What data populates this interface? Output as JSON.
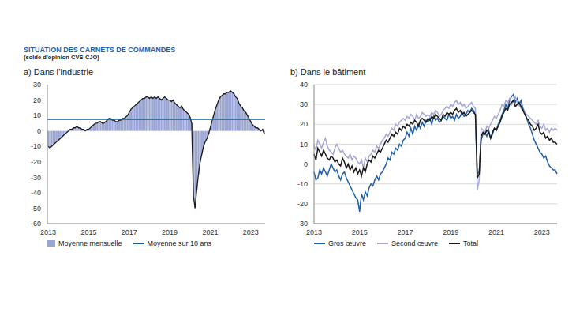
{
  "title": "SITUATION DES CARNETS DE COMMANDES",
  "subtitle": "(solde d’opinion CVS-CJO)",
  "chart_data": [
    {
      "type": "bar",
      "title": "a) Dans l’industrie",
      "categories": [
        "2013",
        null,
        null,
        null,
        null,
        null,
        null,
        null,
        null,
        null,
        null,
        null,
        null,
        null,
        null,
        null,
        null,
        null,
        null,
        null,
        null,
        null,
        null,
        null,
        "2015",
        null,
        null,
        null,
        null,
        null,
        null,
        null,
        null,
        null,
        null,
        null,
        null,
        null,
        null,
        null,
        null,
        null,
        null,
        null,
        null,
        null,
        null,
        null,
        "2017",
        null,
        null,
        null,
        null,
        null,
        null,
        null,
        null,
        null,
        null,
        null,
        null,
        null,
        null,
        null,
        null,
        null,
        null,
        null,
        null,
        null,
        null,
        null,
        "2019",
        null,
        null,
        null,
        null,
        null,
        null,
        null,
        null,
        null,
        null,
        null,
        null,
        null,
        null,
        null,
        null,
        null,
        null,
        null,
        null,
        null,
        null,
        null,
        "2021",
        null,
        null,
        null,
        null,
        null,
        null,
        null,
        null,
        null,
        null,
        null,
        null,
        null,
        null,
        null,
        null,
        null,
        null,
        null,
        null,
        null,
        null,
        null,
        "2023",
        null,
        null,
        null,
        null,
        null,
        null,
        null,
        null
      ],
      "series": [
        {
          "name": "Moyenne mensuelle",
          "color": "#9aa5d3",
          "values": [
            -10,
            -11,
            -10,
            -9,
            -8,
            -7,
            -6,
            -5,
            -4,
            -3,
            -2,
            -1,
            0,
            1,
            1,
            2,
            2,
            3,
            2,
            2,
            1,
            1,
            0,
            1,
            1,
            2,
            3,
            4,
            5,
            5,
            6,
            6,
            5,
            5,
            6,
            7,
            8,
            8,
            7,
            7,
            6,
            6,
            7,
            7,
            8,
            8,
            9,
            10,
            12,
            14,
            15,
            16,
            17,
            18,
            19,
            20,
            21,
            21,
            22,
            22,
            21,
            22,
            21,
            22,
            21,
            22,
            21,
            20,
            21,
            22,
            21,
            20,
            20,
            19,
            20,
            18,
            17,
            16,
            15,
            16,
            14,
            13,
            12,
            11,
            9,
            5,
            -42,
            -50,
            -38,
            -28,
            -20,
            -15,
            -10,
            -7,
            -5,
            -2,
            2,
            6,
            10,
            14,
            17,
            20,
            22,
            23,
            24,
            24,
            25,
            25,
            26,
            25,
            24,
            22,
            21,
            18,
            16,
            15,
            13,
            12,
            10,
            8,
            6,
            4,
            3,
            2,
            2,
            1,
            0,
            1,
            -2
          ]
        }
      ],
      "reference_lines": [
        {
          "name": "Moyenne sur 10 ans",
          "value": 7.5,
          "color": "#1f5f8b"
        }
      ],
      "ylim": [
        -60,
        30
      ],
      "yticks": [
        -60,
        -50,
        -40,
        -30,
        -20,
        -10,
        0,
        10,
        20,
        30
      ],
      "grid": false,
      "legend": "bottom"
    },
    {
      "type": "line",
      "title": "b) Dans le bâtiment",
      "categories": [
        "2013",
        null,
        null,
        null,
        null,
        null,
        null,
        null,
        null,
        null,
        null,
        null,
        null,
        null,
        null,
        null,
        null,
        null,
        null,
        null,
        null,
        null,
        null,
        null,
        "2015",
        null,
        null,
        null,
        null,
        null,
        null,
        null,
        null,
        null,
        null,
        null,
        null,
        null,
        null,
        null,
        null,
        null,
        null,
        null,
        null,
        null,
        null,
        null,
        "2017",
        null,
        null,
        null,
        null,
        null,
        null,
        null,
        null,
        null,
        null,
        null,
        null,
        null,
        null,
        null,
        null,
        null,
        null,
        null,
        null,
        null,
        null,
        null,
        "2019",
        null,
        null,
        null,
        null,
        null,
        null,
        null,
        null,
        null,
        null,
        null,
        null,
        null,
        null,
        null,
        null,
        null,
        null,
        null,
        null,
        null,
        null,
        null,
        "2021",
        null,
        null,
        null,
        null,
        null,
        null,
        null,
        null,
        null,
        null,
        null,
        null,
        null,
        null,
        null,
        null,
        null,
        null,
        null,
        null,
        null,
        null,
        null,
        "2023",
        null,
        null,
        null,
        null,
        null,
        null,
        null,
        null
      ],
      "series": [
        {
          "name": "Gros œuvre",
          "color": "#1f5fa6",
          "values": [
            -4,
            -8,
            -7,
            -3,
            -5,
            -2,
            -4,
            -6,
            -3,
            0,
            -2,
            -4,
            -3,
            -6,
            -8,
            -5,
            -4,
            -7,
            -9,
            -11,
            -13,
            -15,
            -17,
            -18,
            -24,
            -15,
            -18,
            -14,
            -16,
            -12,
            -10,
            -11,
            -8,
            -6,
            -8,
            -5,
            -4,
            -2,
            0,
            3,
            2,
            6,
            5,
            8,
            7,
            10,
            9,
            12,
            13,
            16,
            14,
            18,
            15,
            19,
            17,
            20,
            18,
            21,
            19,
            22,
            21,
            23,
            20,
            24,
            22,
            23,
            21,
            22,
            24,
            23,
            22,
            25,
            23,
            24,
            22,
            25,
            23,
            24,
            26,
            24,
            25,
            27,
            26,
            28,
            27,
            25,
            -5,
            -4,
            12,
            15,
            16,
            14,
            17,
            13,
            15,
            18,
            17,
            20,
            22,
            25,
            27,
            30,
            28,
            32,
            34,
            35,
            31,
            33,
            30,
            32,
            28,
            26,
            23,
            20,
            18,
            15,
            12,
            10,
            8,
            6,
            5,
            3,
            4,
            1,
            -1,
            -2,
            -3,
            -3,
            -5
          ]
        },
        {
          "name": "Second œuvre",
          "color": "#a6a8d6",
          "values": [
            9,
            7,
            12,
            10,
            8,
            11,
            13,
            9,
            7,
            6,
            5,
            8,
            10,
            8,
            6,
            7,
            5,
            4,
            3,
            5,
            2,
            4,
            3,
            1,
            0,
            2,
            -2,
            3,
            1,
            4,
            5,
            7,
            6,
            9,
            8,
            10,
            12,
            13,
            15,
            14,
            16,
            18,
            17,
            20,
            19,
            21,
            22,
            23,
            22,
            24,
            23,
            25,
            24,
            22,
            25,
            23,
            24,
            26,
            25,
            24,
            25,
            24,
            26,
            25,
            27,
            26,
            24,
            25,
            27,
            28,
            29,
            28,
            30,
            29,
            31,
            32,
            30,
            31,
            29,
            30,
            28,
            29,
            30,
            31,
            29,
            28,
            -13,
            -8,
            18,
            17,
            16,
            19,
            18,
            20,
            22,
            24,
            23,
            25,
            27,
            30,
            29,
            32,
            31,
            33,
            30,
            32,
            34,
            31,
            30,
            28,
            27,
            26,
            25,
            24,
            23,
            22,
            21,
            20,
            22,
            19,
            18,
            20,
            17,
            18,
            16,
            18,
            17,
            18,
            17
          ]
        },
        {
          "name": "Total",
          "color": "#1a1a1a",
          "values": [
            5,
            2,
            8,
            6,
            4,
            7,
            5,
            3,
            2,
            4,
            3,
            1,
            2,
            0,
            -1,
            3,
            1,
            -2,
            0,
            -3,
            -1,
            -4,
            -2,
            -5,
            -3,
            -6,
            -2,
            -4,
            0,
            2,
            1,
            4,
            3,
            5,
            7,
            6,
            8,
            10,
            12,
            11,
            13,
            15,
            14,
            16,
            15,
            18,
            17,
            19,
            18,
            20,
            19,
            21,
            20,
            22,
            21,
            19,
            22,
            23,
            22,
            21,
            23,
            22,
            24,
            23,
            25,
            24,
            23,
            22,
            25,
            24,
            26,
            25,
            26,
            25,
            27,
            28,
            26,
            27,
            25,
            26,
            24,
            25,
            26,
            27,
            26,
            25,
            -7,
            -5,
            14,
            16,
            15,
            17,
            16,
            13,
            16,
            18,
            17,
            19,
            21,
            24,
            26,
            28,
            27,
            30,
            31,
            32,
            29,
            30,
            31,
            29,
            27,
            25,
            23,
            22,
            20,
            19,
            17,
            18,
            20,
            16,
            15,
            16,
            13,
            14,
            12,
            13,
            11,
            11,
            10
          ]
        }
      ],
      "ylim": [
        -30,
        40
      ],
      "yticks": [
        -30,
        -20,
        -10,
        0,
        10,
        20,
        30,
        40
      ],
      "grid": true,
      "legend": "bottom"
    }
  ]
}
